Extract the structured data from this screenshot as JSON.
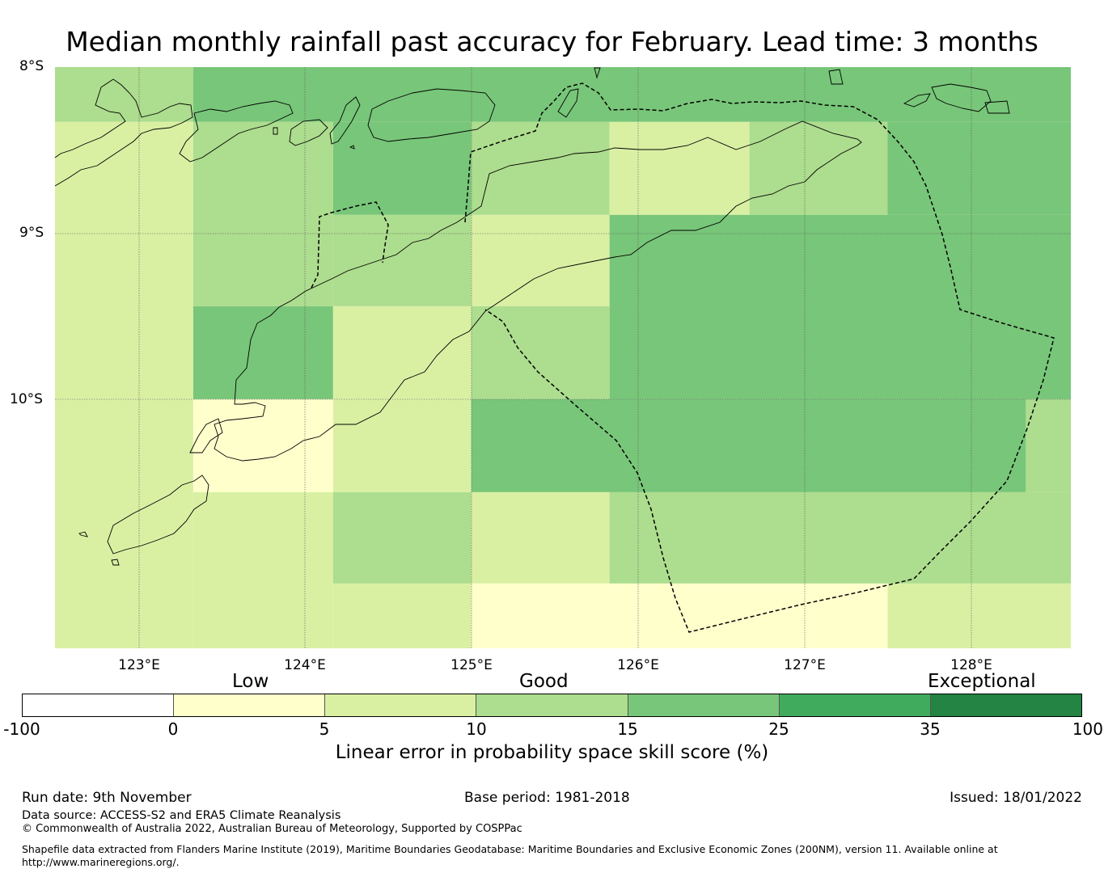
{
  "title": "Median monthly rainfall past accuracy for February. Lead time: 3 months",
  "map": {
    "lat_labels": [
      "8°S",
      "9°S",
      "10°S"
    ],
    "lon_labels": [
      "123°E",
      "124°E",
      "125°E",
      "126°E",
      "127°E",
      "128°E"
    ],
    "lon_range": [
      122.5,
      128.6
    ],
    "lat_range": [
      -8.0,
      -11.5
    ],
    "cells": [
      {
        "lon": [
          122.5,
          123.33
        ],
        "lat": [
          -8.0,
          -8.33
        ],
        "category": 3
      },
      {
        "lon": [
          123.33,
          128.6
        ],
        "lat": [
          -8.0,
          -8.33
        ],
        "category": 4
      },
      {
        "lon": [
          122.5,
          123.33
        ],
        "lat": [
          -8.33,
          -10.0
        ],
        "category": 2
      },
      {
        "lon": [
          123.33,
          124.17
        ],
        "lat": [
          -8.33,
          -9.44
        ],
        "category": 3
      },
      {
        "lon": [
          124.17,
          125.0
        ],
        "lat": [
          -8.33,
          -8.89
        ],
        "category": 4
      },
      {
        "lon": [
          124.17,
          125.0
        ],
        "lat": [
          -8.89,
          -9.44
        ],
        "category": 3
      },
      {
        "lon": [
          125.0,
          125.83
        ],
        "lat": [
          -8.33,
          -8.89
        ],
        "category": 3
      },
      {
        "lon": [
          125.0,
          125.83
        ],
        "lat": [
          -8.89,
          -9.44
        ],
        "category": 2
      },
      {
        "lon": [
          125.83,
          126.67
        ],
        "lat": [
          -8.33,
          -8.89
        ],
        "category": 2
      },
      {
        "lon": [
          126.67,
          127.5
        ],
        "lat": [
          -8.33,
          -8.89
        ],
        "category": 3
      },
      {
        "lon": [
          127.5,
          128.6
        ],
        "lat": [
          -8.33,
          -8.89
        ],
        "category": 4
      },
      {
        "lon": [
          125.83,
          128.6
        ],
        "lat": [
          -8.89,
          -10.0
        ],
        "category": 4
      },
      {
        "lon": [
          123.33,
          124.17
        ],
        "lat": [
          -9.44,
          -10.0
        ],
        "category": 4
      },
      {
        "lon": [
          124.17,
          125.0
        ],
        "lat": [
          -9.44,
          -10.0
        ],
        "category": 2
      },
      {
        "lon": [
          125.0,
          125.83
        ],
        "lat": [
          -9.44,
          -10.0
        ],
        "category": 3
      },
      {
        "lon": [
          122.5,
          123.33
        ],
        "lat": [
          -10.0,
          -11.5
        ],
        "category": 2
      },
      {
        "lon": [
          123.33,
          124.17
        ],
        "lat": [
          -10.0,
          -10.56
        ],
        "category": 1
      },
      {
        "lon": [
          124.17,
          125.0
        ],
        "lat": [
          -10.0,
          -10.56
        ],
        "category": 2
      },
      {
        "lon": [
          125.0,
          128.33
        ],
        "lat": [
          -10.0,
          -10.56
        ],
        "category": 4
      },
      {
        "lon": [
          128.33,
          128.6
        ],
        "lat": [
          -10.0,
          -10.56
        ],
        "category": 3
      },
      {
        "lon": [
          123.33,
          124.17
        ],
        "lat": [
          -10.56,
          -11.5
        ],
        "category": 2
      },
      {
        "lon": [
          124.17,
          125.0
        ],
        "lat": [
          -10.56,
          -11.11
        ],
        "category": 3
      },
      {
        "lon": [
          124.17,
          125.0
        ],
        "lat": [
          -11.11,
          -11.5
        ],
        "category": 2
      },
      {
        "lon": [
          125.0,
          125.83
        ],
        "lat": [
          -10.56,
          -11.11
        ],
        "category": 2
      },
      {
        "lon": [
          125.83,
          128.6
        ],
        "lat": [
          -10.56,
          -11.11
        ],
        "category": 3
      },
      {
        "lon": [
          125.0,
          127.5
        ],
        "lat": [
          -11.11,
          -11.5
        ],
        "category": 1
      },
      {
        "lon": [
          127.5,
          128.6
        ],
        "lat": [
          -11.11,
          -11.5
        ],
        "category": 2
      }
    ]
  },
  "colorbar": {
    "categories": [
      "Low",
      "Good",
      "Exceptional"
    ],
    "ticks": [
      "-100",
      "0",
      "5",
      "10",
      "15",
      "25",
      "35",
      "100"
    ],
    "colors": [
      "#ffffff",
      "#ffffcc",
      "#d9f0a3",
      "#addd8e",
      "#78c679",
      "#41ab5d",
      "#238443"
    ],
    "label": "Linear error in probability space skill score (%)"
  },
  "footer": {
    "run_date": "Run date: 9th November",
    "base_period": "Base period: 1981-2018",
    "issued": "Issued: 18/01/2022",
    "data_source": "Data source: ACCESS-S2 and ERA5 Climate Reanalysis",
    "copyright": "© Commonwealth of Australia 2022, Australian Bureau of Meteorology, Supported by COSPPac",
    "shapefile": "Shapefile data extracted from Flanders Marine Institute (2019), Maritime Boundaries Geodatabase: Maritime Boundaries and Exclusive Economic Zones (200NM), version 11. Available online at http://www.marineregions.org/."
  }
}
